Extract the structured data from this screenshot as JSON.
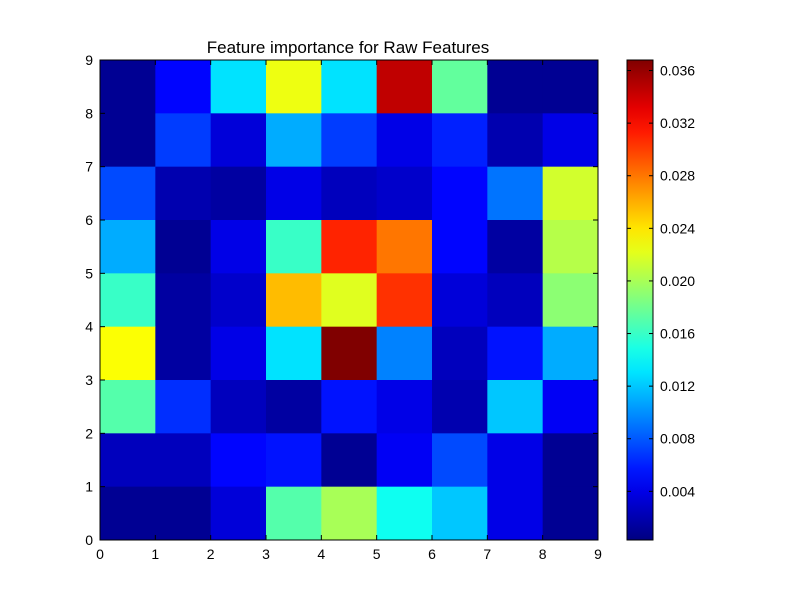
{
  "chart_data": {
    "type": "heatmap",
    "title": "Feature importance for Raw Features",
    "xlabel": "",
    "ylabel": "",
    "x_ticks": [
      "0",
      "1",
      "2",
      "3",
      "4",
      "5",
      "6",
      "7",
      "8",
      "9"
    ],
    "y_ticks": [
      "0",
      "1",
      "2",
      "3",
      "4",
      "5",
      "6",
      "7",
      "8",
      "9"
    ],
    "xlim": [
      0,
      9
    ],
    "ylim": [
      0,
      9
    ],
    "colormap": "jet",
    "color_range": [
      0.0003,
      0.0368
    ],
    "colorbar_ticks": [
      "0.004",
      "0.008",
      "0.012",
      "0.016",
      "0.020",
      "0.024",
      "0.028",
      "0.032",
      "0.036"
    ],
    "grid": false,
    "values_top_to_bottom": [
      [
        0.001,
        0.005,
        0.013,
        0.0225,
        0.013,
        0.0345,
        0.0175,
        0.001,
        0.001
      ],
      [
        0.001,
        0.007,
        0.0035,
        0.011,
        0.007,
        0.004,
        0.006,
        0.002,
        0.004
      ],
      [
        0.0075,
        0.002,
        0.0015,
        0.004,
        0.0025,
        0.003,
        0.005,
        0.009,
        0.0215
      ],
      [
        0.011,
        0.001,
        0.004,
        0.016,
        0.031,
        0.028,
        0.005,
        0.0015,
        0.0205
      ],
      [
        0.016,
        0.0015,
        0.003,
        0.0255,
        0.022,
        0.0305,
        0.0035,
        0.0025,
        0.019
      ],
      [
        0.023,
        0.0015,
        0.004,
        0.013,
        0.0368,
        0.0095,
        0.0025,
        0.0055,
        0.011
      ],
      [
        0.017,
        0.0065,
        0.0025,
        0.0015,
        0.0055,
        0.004,
        0.002,
        0.012,
        0.0045
      ],
      [
        0.0025,
        0.0025,
        0.005,
        0.0055,
        0.001,
        0.0045,
        0.0075,
        0.004,
        0.001
      ],
      [
        0.001,
        0.001,
        0.0035,
        0.017,
        0.02,
        0.0145,
        0.012,
        0.004,
        0.001
      ]
    ]
  }
}
